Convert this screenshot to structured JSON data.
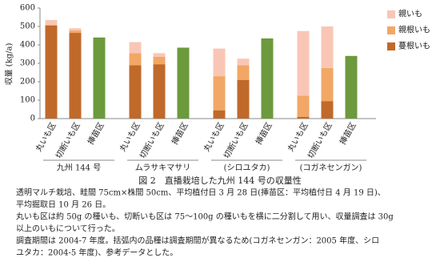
{
  "chart_data": {
    "type": "bar",
    "y_label": "収量 (kg/a)",
    "categories": [
      "丸いも区",
      "切断いも区",
      "挿苗区",
      "丸いも区",
      "切断いも区",
      "挿苗区",
      "丸いも区",
      "切断いも区",
      "挿苗区",
      "丸いも区",
      "切断いも区",
      "挿苗区"
    ],
    "groups": [
      "九州 144 号",
      "ムラサキマサリ",
      "(シロユタカ)",
      "(コガネセンガン)"
    ],
    "series": [
      {
        "name": "蔓根いも",
        "color": "#c0692a",
        "values": [
          505,
          465,
          null,
          290,
          295,
          null,
          45,
          210,
          null,
          10,
          95,
          null
        ]
      },
      {
        "name": "親根いも",
        "color": "#f2a765",
        "values": [
          5,
          13,
          null,
          65,
          40,
          null,
          185,
          80,
          null,
          115,
          180,
          null
        ]
      },
      {
        "name": "親いも",
        "color": "#f9c6b6",
        "values": [
          25,
          12,
          null,
          60,
          20,
          null,
          150,
          35,
          null,
          350,
          225,
          null
        ]
      },
      {
        "color": "#6c9a3c",
        "values": [
          null,
          null,
          440,
          null,
          null,
          385,
          null,
          null,
          435,
          null,
          null,
          340
        ]
      }
    ],
    "ylim": [
      0,
      600
    ],
    "yticks": [
      0,
      100,
      200,
      300,
      400,
      500,
      600
    ],
    "caption_title": "図 2　直播栽培した九州 144 号の収量性",
    "caption_lines": [
      "透明マルチ栽培、畦間 75cm×株間 50cm、平均植付日 3 月 28 日(挿苗区：平均植付日 4 月 19 日)、",
      "平均掘取日 10 月 26 日。",
      "丸いも区は約 50g の種いも、切断いも区は 75〜100g の種いもを横に二分割して用い、収量調査は 30g",
      "以上のいもについて行った。",
      "調査期間は 2004-7 年度。括弧内の品種は調査期間が異なるため(コガネセンガン：2005 年度、シロ",
      "ユタカ：2004-5 年度)、参考データとした。"
    ]
  }
}
